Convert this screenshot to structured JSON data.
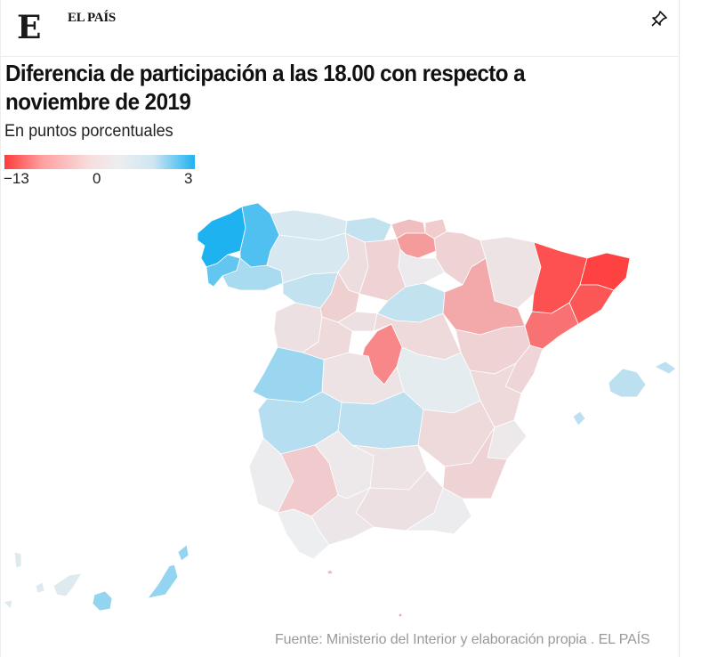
{
  "header": {
    "logo_letter": "E",
    "brand": "EL PAÍS",
    "pin_icon": "pushpin-icon"
  },
  "title": "Diferencia de participación a las 18.00 con respecto a noviembre de 2019",
  "subtitle": "En puntos porcentuales",
  "legend": {
    "min_label": "−13",
    "mid_label": "0",
    "max_label": "3",
    "domain": [
      -13,
      0,
      3
    ],
    "colors": [
      "#ff3b3b",
      "#eceef0",
      "#1fb2f0"
    ]
  },
  "source": "Fuente: Ministerio del Interior y elaboración propia . EL PAÍS",
  "chart_data": {
    "type": "heatmap",
    "title": "Diferencia de participación a las 18.00 con respecto a noviembre de 2019",
    "subtitle": "En puntos porcentuales",
    "scale": {
      "min": -13,
      "mid": 0,
      "max": 3
    },
    "regions": [
      {
        "name": "A Coruña",
        "value": 3.0
      },
      {
        "name": "Lugo",
        "value": 2.3
      },
      {
        "name": "Pontevedra",
        "value": 2.0
      },
      {
        "name": "Ourense",
        "value": 1.0
      },
      {
        "name": "Asturias",
        "value": 0.3
      },
      {
        "name": "Cantabria",
        "value": 0.6
      },
      {
        "name": "León",
        "value": 0.3
      },
      {
        "name": "Palencia",
        "value": -1.2
      },
      {
        "name": "Burgos",
        "value": -2.0
      },
      {
        "name": "Zamora",
        "value": 0.6
      },
      {
        "name": "Valladolid",
        "value": -2.2
      },
      {
        "name": "Salamanca",
        "value": -1.0
      },
      {
        "name": "Ávila",
        "value": -1.5
      },
      {
        "name": "Segovia",
        "value": -1.0
      },
      {
        "name": "Soria",
        "value": 0.6
      },
      {
        "name": "Bizkaia",
        "value": -3.5
      },
      {
        "name": "Gipuzkoa",
        "value": -2.5
      },
      {
        "name": "Araba",
        "value": -6.0
      },
      {
        "name": "La Rioja",
        "value": -0.3
      },
      {
        "name": "Navarra",
        "value": -2.0
      },
      {
        "name": "Huesca",
        "value": -0.8
      },
      {
        "name": "Zaragoza",
        "value": -5.0
      },
      {
        "name": "Teruel",
        "value": -2.0
      },
      {
        "name": "Lleida",
        "value": -11.5
      },
      {
        "name": "Girona",
        "value": -12.5
      },
      {
        "name": "Barcelona",
        "value": -11.0
      },
      {
        "name": "Tarragona",
        "value": -9.0
      },
      {
        "name": "Madrid",
        "value": -7.5
      },
      {
        "name": "Guadalajara",
        "value": -1.5
      },
      {
        "name": "Cuenca",
        "value": 0.1
      },
      {
        "name": "Toledo",
        "value": -0.8
      },
      {
        "name": "Cáceres",
        "value": 1.2
      },
      {
        "name": "Badajoz",
        "value": 0.8
      },
      {
        "name": "Ciudad Real",
        "value": 0.7
      },
      {
        "name": "Albacete",
        "value": -1.5
      },
      {
        "name": "Castellón",
        "value": -1.8
      },
      {
        "name": "Valencia",
        "value": -1.5
      },
      {
        "name": "Alicante",
        "value": -0.4
      },
      {
        "name": "Murcia",
        "value": -2.0
      },
      {
        "name": "Huelva",
        "value": -0.2
      },
      {
        "name": "Sevilla",
        "value": -2.6
      },
      {
        "name": "Córdoba",
        "value": -0.4
      },
      {
        "name": "Jaén",
        "value": -0.8
      },
      {
        "name": "Granada",
        "value": -1.0
      },
      {
        "name": "Almería",
        "value": -0.2
      },
      {
        "name": "Málaga",
        "value": -0.6
      },
      {
        "name": "Cádiz",
        "value": 0.0
      },
      {
        "name": "Illes Balears",
        "value": 0.7
      },
      {
        "name": "Santa Cruz de Tenerife",
        "value": 0.2
      },
      {
        "name": "Las Palmas",
        "value": 1.3
      },
      {
        "name": "Ceuta",
        "value": -4.0
      },
      {
        "name": "Melilla",
        "value": -6.0
      }
    ]
  }
}
